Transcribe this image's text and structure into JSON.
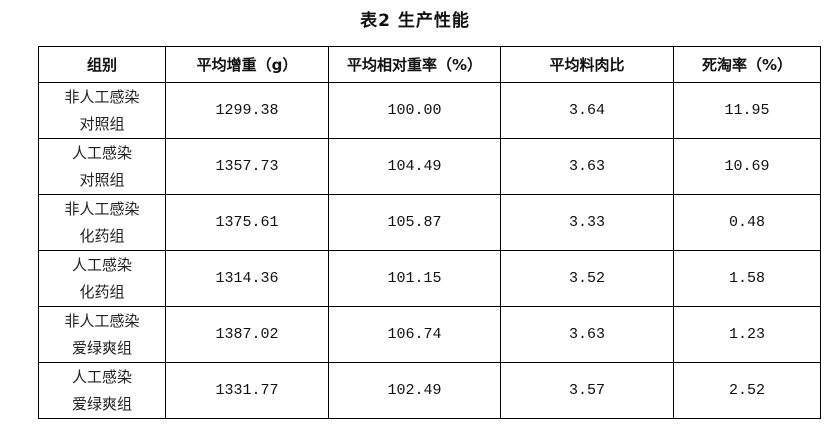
{
  "title": "表2  生产性能",
  "table": {
    "headers": [
      "组别",
      "平均增重（g）",
      "平均相对重率（%）",
      "平均料肉比",
      "死淘率（%）"
    ],
    "rows": [
      {
        "group_line1": "非人工感染",
        "group_line2": "对照组",
        "weight_gain": "1299.38",
        "relative_rate": "100.00",
        "feed_ratio": "3.64",
        "mortality": "11.95"
      },
      {
        "group_line1": "人工感染",
        "group_line2": "对照组",
        "weight_gain": "1357.73",
        "relative_rate": "104.49",
        "feed_ratio": "3.63",
        "mortality": "10.69"
      },
      {
        "group_line1": "非人工感染",
        "group_line2": "化药组",
        "weight_gain": "1375.61",
        "relative_rate": "105.87",
        "feed_ratio": "3.33",
        "mortality": "0.48"
      },
      {
        "group_line1": "人工感染",
        "group_line2": "化药组",
        "weight_gain": "1314.36",
        "relative_rate": "101.15",
        "feed_ratio": "3.52",
        "mortality": "1.58"
      },
      {
        "group_line1": "非人工感染",
        "group_line2": "爱绿爽组",
        "weight_gain": "1387.02",
        "relative_rate": "106.74",
        "feed_ratio": "3.63",
        "mortality": "1.23"
      },
      {
        "group_line1": "人工感染",
        "group_line2": "爱绿爽组",
        "weight_gain": "1331.77",
        "relative_rate": "102.49",
        "feed_ratio": "3.57",
        "mortality": "2.52"
      }
    ]
  }
}
